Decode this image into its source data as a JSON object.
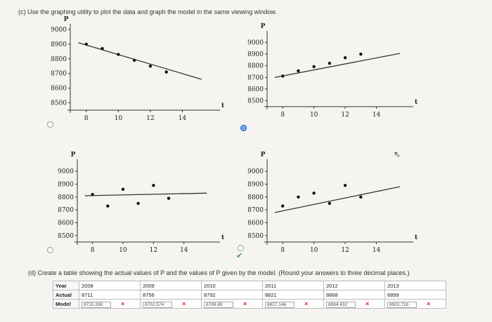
{
  "part_c": {
    "text": "(c) Use the graphing utility to plot the data and graph the model in the same viewing window."
  },
  "part_d": {
    "text": "(d) Create a table showing the actual values of P and the values of P given by the model. (Round your answers to three decimal places.)"
  },
  "graph_axis": {
    "y_label": "P",
    "t_label": "t"
  },
  "options": [
    {
      "id": "a",
      "selected": false,
      "correct": false
    },
    {
      "id": "b",
      "selected": true,
      "correct": false
    },
    {
      "id": "c",
      "selected": false,
      "correct": false
    },
    {
      "id": "d",
      "selected": false,
      "correct": true
    }
  ],
  "chart_data": [
    {
      "type": "scatter",
      "xlabel": "t",
      "ylabel": "P",
      "xlim": [
        7,
        16
      ],
      "ylim": [
        8450,
        9000
      ],
      "xticks": [
        "8",
        "10",
        "12",
        "14"
      ],
      "yticks": [
        "9000",
        "8900",
        "8800",
        "8700",
        "8600",
        "8500"
      ],
      "points": {
        "x": [
          8,
          9,
          10,
          11,
          12,
          13
        ],
        "y": [
          8900,
          8870,
          8830,
          8790,
          8750,
          8710
        ]
      },
      "line": {
        "x": [
          7.5,
          15.2
        ],
        "y": [
          8910,
          8660
        ]
      }
    },
    {
      "type": "scatter",
      "xlabel": "t",
      "ylabel": "P",
      "xlim": [
        7,
        16
      ],
      "ylim": [
        8450,
        9050
      ],
      "xticks": [
        "8",
        "10",
        "12",
        "14"
      ],
      "yticks": [
        "9000",
        "8900",
        "8800",
        "8700",
        "8600",
        "8500"
      ],
      "points": {
        "x": [
          8,
          9,
          10,
          11,
          12,
          13
        ],
        "y": [
          8711,
          8756,
          8792,
          8821,
          8868,
          8899
        ]
      },
      "line": {
        "x": [
          7.5,
          15.5
        ],
        "y": [
          8700,
          8905
        ]
      }
    },
    {
      "type": "scatter",
      "xlabel": "t",
      "ylabel": "P",
      "xlim": [
        7,
        16
      ],
      "ylim": [
        8450,
        9050
      ],
      "xticks": [
        "8",
        "10",
        "12",
        "14"
      ],
      "yticks": [
        "9000",
        "8900",
        "8800",
        "8700",
        "8600",
        "8500"
      ],
      "points": {
        "x": [
          8,
          9,
          10,
          11,
          12,
          13
        ],
        "y": [
          8820,
          8730,
          8860,
          8750,
          8890,
          8790
        ]
      },
      "line": {
        "x": [
          7.5,
          15.5
        ],
        "y": [
          8810,
          8830
        ]
      }
    },
    {
      "type": "scatter",
      "xlabel": "t",
      "ylabel": "P",
      "xlim": [
        7,
        16
      ],
      "ylim": [
        8450,
        9050
      ],
      "xticks": [
        "8",
        "10",
        "12",
        "14"
      ],
      "yticks": [
        "9000",
        "8900",
        "8800",
        "8700",
        "8600",
        "8500"
      ],
      "points": {
        "x": [
          8,
          9,
          10,
          11,
          12,
          13
        ],
        "y": [
          8730,
          8800,
          8830,
          8750,
          8890,
          8800
        ]
      },
      "line": {
        "x": [
          7.5,
          15.5
        ],
        "y": [
          8680,
          8880
        ]
      }
    }
  ],
  "table": {
    "row_labels": {
      "year": "Year",
      "actual": "Actual",
      "model": "Model"
    },
    "years": [
      "2008",
      "2009",
      "2010",
      "2011",
      "2012",
      "2013"
    ],
    "actual": [
      "8711",
      "8756",
      "8792",
      "8821",
      "8868",
      "8899"
    ],
    "model": [
      "8715.288",
      "8752.574",
      "8789.86",
      "8827.146",
      "8864.432",
      "8902.718"
    ],
    "wrong_mark": "×"
  }
}
